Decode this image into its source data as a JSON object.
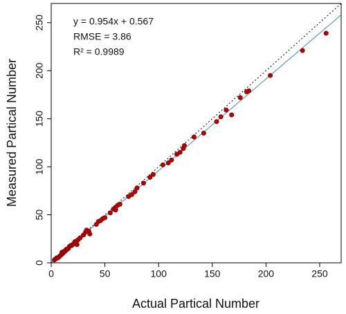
{
  "chart_data": {
    "type": "scatter",
    "xlabel": "Actual Partical Number",
    "ylabel": "Measured Partical Number",
    "annotations": [
      "y = 0.954x + 0.567",
      "RMSE = 3.86",
      "R² = 0.9989"
    ],
    "x": [
      3,
      4,
      5,
      6,
      7,
      8,
      9,
      10,
      10,
      11,
      12,
      13,
      14,
      15,
      16,
      17,
      18,
      19,
      20,
      21,
      22,
      23,
      24,
      25,
      24,
      27,
      30,
      32,
      33,
      35,
      36,
      42,
      44,
      46,
      48,
      50,
      55,
      58,
      60,
      62,
      64,
      60,
      72,
      75,
      78,
      80,
      86,
      92,
      95,
      104,
      109,
      112,
      117,
      120,
      123,
      124,
      133,
      142,
      154,
      158,
      163,
      168,
      176,
      182,
      184,
      204,
      234,
      256
    ],
    "values": [
      3,
      4,
      5,
      5,
      6,
      7,
      8,
      9,
      11,
      10,
      12,
      12,
      14,
      14,
      15,
      17,
      18,
      18,
      19,
      20,
      22,
      21,
      23,
      24,
      19,
      26,
      29,
      32,
      34,
      33,
      30,
      40,
      43,
      44,
      46,
      47,
      52,
      56,
      58,
      60,
      61,
      55,
      69,
      71,
      74,
      78,
      83,
      89,
      92,
      102,
      104,
      107,
      113,
      115,
      119,
      122,
      131,
      135,
      147,
      152,
      159,
      154,
      172,
      178,
      179,
      195,
      221,
      239
    ],
    "color": "#b30000",
    "lines": [
      {
        "slope": 1,
        "intercept": 0,
        "color": "#000000",
        "style": "dotted"
      },
      {
        "slope": 0.954,
        "intercept": 0.567,
        "color": "#3a8fa8",
        "style": "solid"
      }
    ],
    "xlim": [
      0,
      270
    ],
    "ylim": [
      0,
      270
    ],
    "xticks": [
      0,
      50,
      100,
      150,
      200,
      250
    ],
    "yticks": [
      0,
      50,
      100,
      150,
      200,
      250
    ]
  }
}
